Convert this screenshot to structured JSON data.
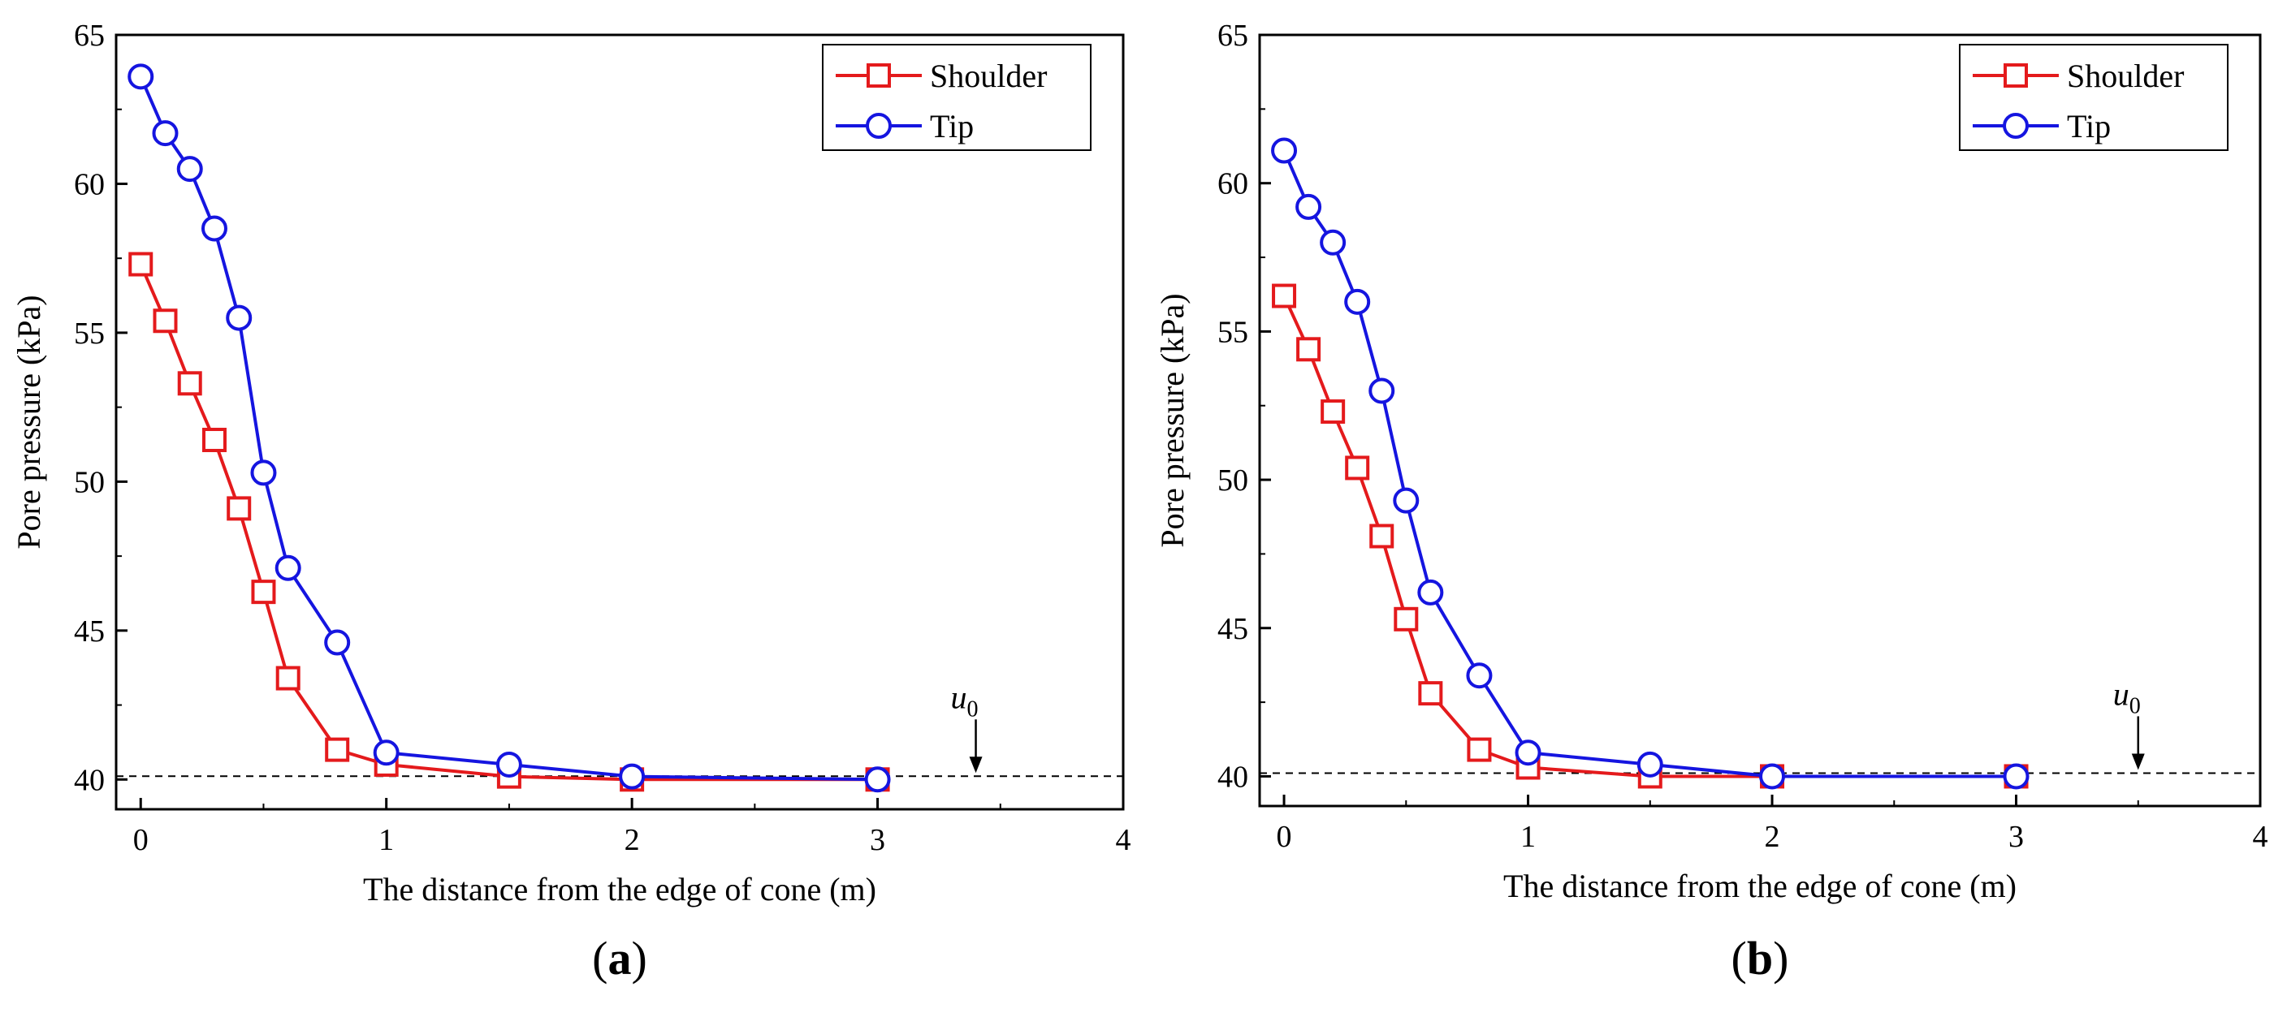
{
  "chart_data": [
    {
      "type": "line",
      "panel_label": "(a)",
      "panel_letter": "a",
      "xlabel": "The distance from the edge of cone (m)",
      "ylabel": "Pore pressure (kPa)",
      "xlim": [
        -0.1,
        4
      ],
      "ylim": [
        39,
        65
      ],
      "xticks": [
        0,
        1,
        2,
        3,
        4
      ],
      "yticks": [
        40,
        45,
        50,
        55,
        60,
        65
      ],
      "reference_line": {
        "y": 40,
        "label": "u",
        "label_sub": "0",
        "arrow_x": 3.4,
        "style": "dashed"
      },
      "legend_position": "top-right",
      "series": [
        {
          "name": "Shoulder",
          "marker": "square",
          "color": "#e41a1c",
          "x": [
            0,
            0.1,
            0.2,
            0.3,
            0.4,
            0.5,
            0.6,
            0.8,
            1.0,
            1.5,
            2.0,
            3.0
          ],
          "values": [
            57.3,
            55.4,
            53.3,
            51.4,
            49.1,
            46.3,
            43.4,
            41.0,
            40.5,
            40.1,
            40.0,
            40.0
          ]
        },
        {
          "name": "Tip",
          "marker": "circle",
          "color": "#1515e0",
          "x": [
            0,
            0.1,
            0.2,
            0.3,
            0.4,
            0.5,
            0.6,
            0.8,
            1.0,
            1.5,
            2.0,
            3.0
          ],
          "values": [
            63.6,
            61.7,
            60.5,
            58.5,
            55.5,
            50.3,
            47.1,
            44.6,
            40.9,
            40.5,
            40.1,
            40.0
          ]
        }
      ]
    },
    {
      "type": "line",
      "panel_label": "(b)",
      "panel_letter": "b",
      "xlabel": "The distance from the edge of cone (m)",
      "ylabel": "Pore pressure (kPa)",
      "xlim": [
        -0.1,
        4
      ],
      "ylim": [
        39,
        65
      ],
      "xticks": [
        0,
        1,
        2,
        3,
        4
      ],
      "yticks": [
        40,
        45,
        50,
        55,
        60,
        65
      ],
      "reference_line": {
        "y": 40,
        "label": "u",
        "label_sub": "0",
        "arrow_x": 3.5,
        "style": "dashed"
      },
      "legend_position": "top-right",
      "series": [
        {
          "name": "Shoulder",
          "marker": "square",
          "color": "#e41a1c",
          "x": [
            0,
            0.1,
            0.2,
            0.3,
            0.4,
            0.5,
            0.6,
            0.8,
            1.0,
            1.5,
            2.0,
            3.0
          ],
          "values": [
            56.2,
            54.4,
            52.3,
            50.4,
            48.1,
            45.3,
            42.8,
            40.9,
            40.3,
            40.0,
            40.0,
            40.0
          ]
        },
        {
          "name": "Tip",
          "marker": "circle",
          "color": "#1515e0",
          "x": [
            0,
            0.1,
            0.2,
            0.3,
            0.4,
            0.5,
            0.6,
            0.8,
            1.0,
            1.5,
            2.0,
            3.0
          ],
          "values": [
            61.1,
            59.2,
            58.0,
            56.0,
            53.0,
            49.3,
            46.2,
            43.4,
            40.8,
            40.4,
            40.0,
            40.0
          ]
        }
      ]
    }
  ]
}
